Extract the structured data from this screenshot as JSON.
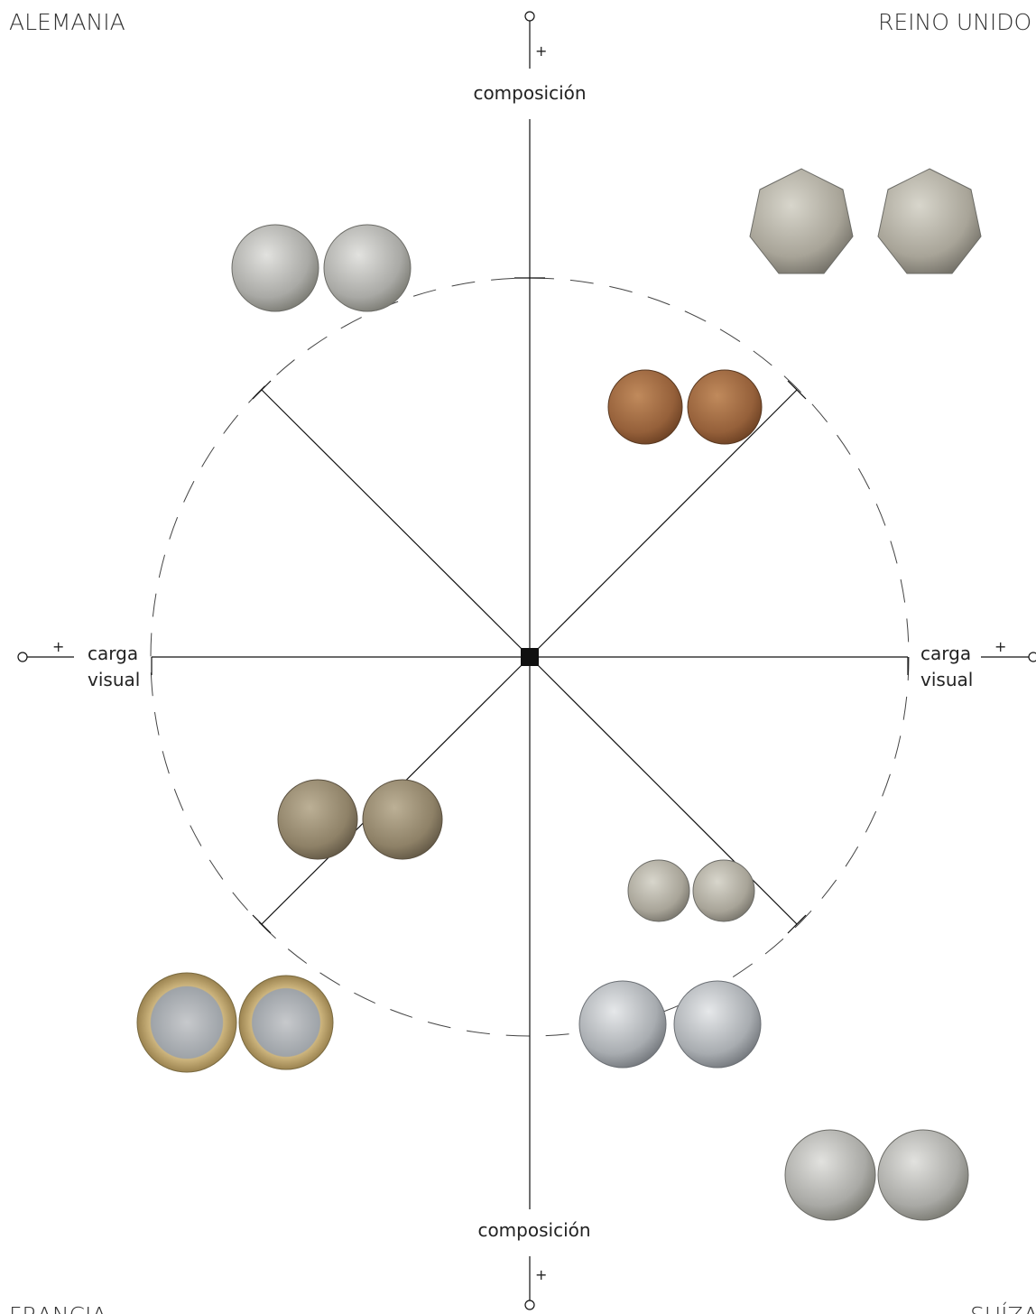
{
  "corners": {
    "top_left": "ALEMANIA",
    "top_right": "REINO UNIDO",
    "bottom_left": "FRANCIA",
    "bottom_right": "SUÍZA"
  },
  "axes": {
    "top": {
      "label": "composición",
      "sign": "+"
    },
    "bottom": {
      "label": "composición",
      "sign": "+"
    },
    "left": {
      "label_lines": [
        "carga",
        "visual"
      ],
      "sign": "+"
    },
    "right": {
      "label_lines": [
        "carga",
        "visual"
      ],
      "sign": "+"
    }
  }
}
